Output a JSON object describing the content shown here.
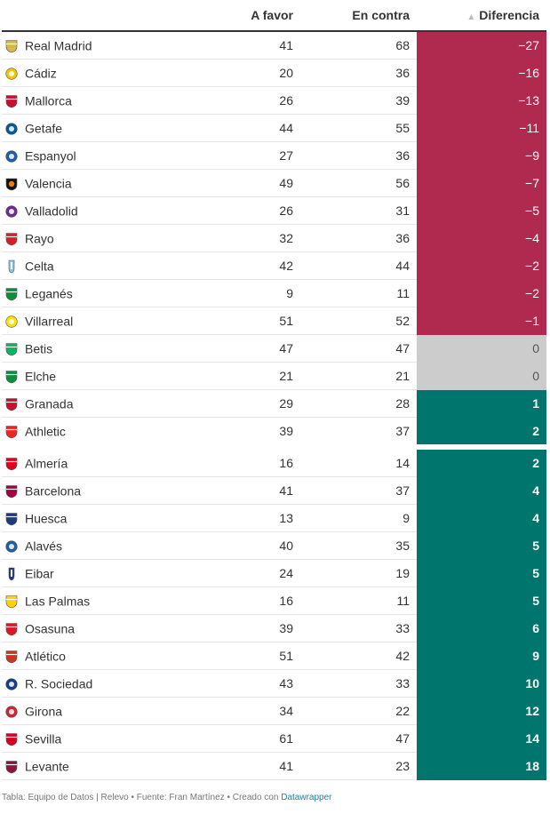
{
  "chart_data": {
    "type": "table",
    "columns": [
      "",
      "A favor",
      "En contra",
      "Diferencia"
    ],
    "sorted_by": "Diferencia",
    "sort_order": "ascending",
    "rows": [
      {
        "team": "Real Madrid",
        "favor": "41",
        "contra": "68",
        "diferencia": "−27",
        "value": -27
      },
      {
        "team": "Cádiz",
        "favor": "20",
        "contra": "36",
        "diferencia": "−16",
        "value": -16
      },
      {
        "team": "Mallorca",
        "favor": "26",
        "contra": "39",
        "diferencia": "−13",
        "value": -13
      },
      {
        "team": "Getafe",
        "favor": "44",
        "contra": "55",
        "diferencia": "−11",
        "value": -11
      },
      {
        "team": "Espanyol",
        "favor": "27",
        "contra": "36",
        "diferencia": "−9",
        "value": -9
      },
      {
        "team": "Valencia",
        "favor": "49",
        "contra": "56",
        "diferencia": "−7",
        "value": -7
      },
      {
        "team": "Valladolid",
        "favor": "26",
        "contra": "31",
        "diferencia": "−5",
        "value": -5
      },
      {
        "team": "Rayo",
        "favor": "32",
        "contra": "36",
        "diferencia": "−4",
        "value": -4
      },
      {
        "team": "Celta",
        "favor": "42",
        "contra": "44",
        "diferencia": "−2",
        "value": -2
      },
      {
        "team": "Leganés",
        "favor": "9",
        "contra": "11",
        "diferencia": "−2",
        "value": -2
      },
      {
        "team": "Villarreal",
        "favor": "51",
        "contra": "52",
        "diferencia": "−1",
        "value": -1
      },
      {
        "team": "Betis",
        "favor": "47",
        "contra": "47",
        "diferencia": "0",
        "value": 0
      },
      {
        "team": "Elche",
        "favor": "21",
        "contra": "21",
        "diferencia": "0",
        "value": 0
      },
      {
        "team": "Granada",
        "favor": "29",
        "contra": "28",
        "diferencia": "1",
        "value": 1
      },
      {
        "team": "Athletic",
        "favor": "39",
        "contra": "37",
        "diferencia": "2",
        "value": 2
      },
      {
        "team": "Almería",
        "favor": "16",
        "contra": "14",
        "diferencia": "2",
        "value": 2
      },
      {
        "team": "Barcelona",
        "favor": "41",
        "contra": "37",
        "diferencia": "4",
        "value": 4
      },
      {
        "team": "Huesca",
        "favor": "13",
        "contra": "9",
        "diferencia": "4",
        "value": 4
      },
      {
        "team": "Alavés",
        "favor": "40",
        "contra": "35",
        "diferencia": "5",
        "value": 5
      },
      {
        "team": "Eibar",
        "favor": "24",
        "contra": "19",
        "diferencia": "5",
        "value": 5
      },
      {
        "team": "Las Palmas",
        "favor": "16",
        "contra": "11",
        "diferencia": "5",
        "value": 5
      },
      {
        "team": "Osasuna",
        "favor": "39",
        "contra": "33",
        "diferencia": "6",
        "value": 6
      },
      {
        "team": "Atlético",
        "favor": "51",
        "contra": "42",
        "diferencia": "9",
        "value": 9
      },
      {
        "team": "R. Sociedad",
        "favor": "43",
        "contra": "33",
        "diferencia": "10",
        "value": 10
      },
      {
        "team": "Girona",
        "favor": "34",
        "contra": "22",
        "diferencia": "12",
        "value": 12
      },
      {
        "team": "Sevilla",
        "favor": "61",
        "contra": "47",
        "diferencia": "14",
        "value": 14
      },
      {
        "team": "Levante",
        "favor": "41",
        "contra": "23",
        "diferencia": "18",
        "value": 18
      }
    ],
    "crest_colors": {
      "Real Madrid": "#d7b94a",
      "Cádiz": "#f2c500",
      "Mallorca": "#c8102e",
      "Getafe": "#005999",
      "Espanyol": "#1d5cab",
      "Valencia": "#ee7f00",
      "Valladolid": "#6a2c91",
      "Rayo": "#d81e2a",
      "Celta": "#8ac5ea",
      "Leganés": "#0a8f3c",
      "Villarreal": "#fde100",
      "Betis": "#0bb363",
      "Elche": "#0a8f3c",
      "Granada": "#c8102e",
      "Athletic": "#ee2523",
      "Almería": "#e2001a",
      "Barcelona": "#a50044",
      "Huesca": "#1f3b7a",
      "Alavés": "#1f5aa6",
      "Eibar": "#1f3b7a",
      "Las Palmas": "#fdd20a",
      "Osasuna": "#d91a21",
      "Atlético": "#cb3524",
      "R. Sociedad": "#143c8b",
      "Girona": "#cd2534",
      "Sevilla": "#d4021d",
      "Levante": "#8a1538"
    },
    "colors": {
      "negative": "#b0294f",
      "zero": "#cccccc",
      "positive": "#00756e"
    }
  },
  "footer": {
    "text": "Tabla: Equipo de Datos | Relevo • Fuente: Fran Martínez • Creado con ",
    "link": "Datawrapper"
  }
}
